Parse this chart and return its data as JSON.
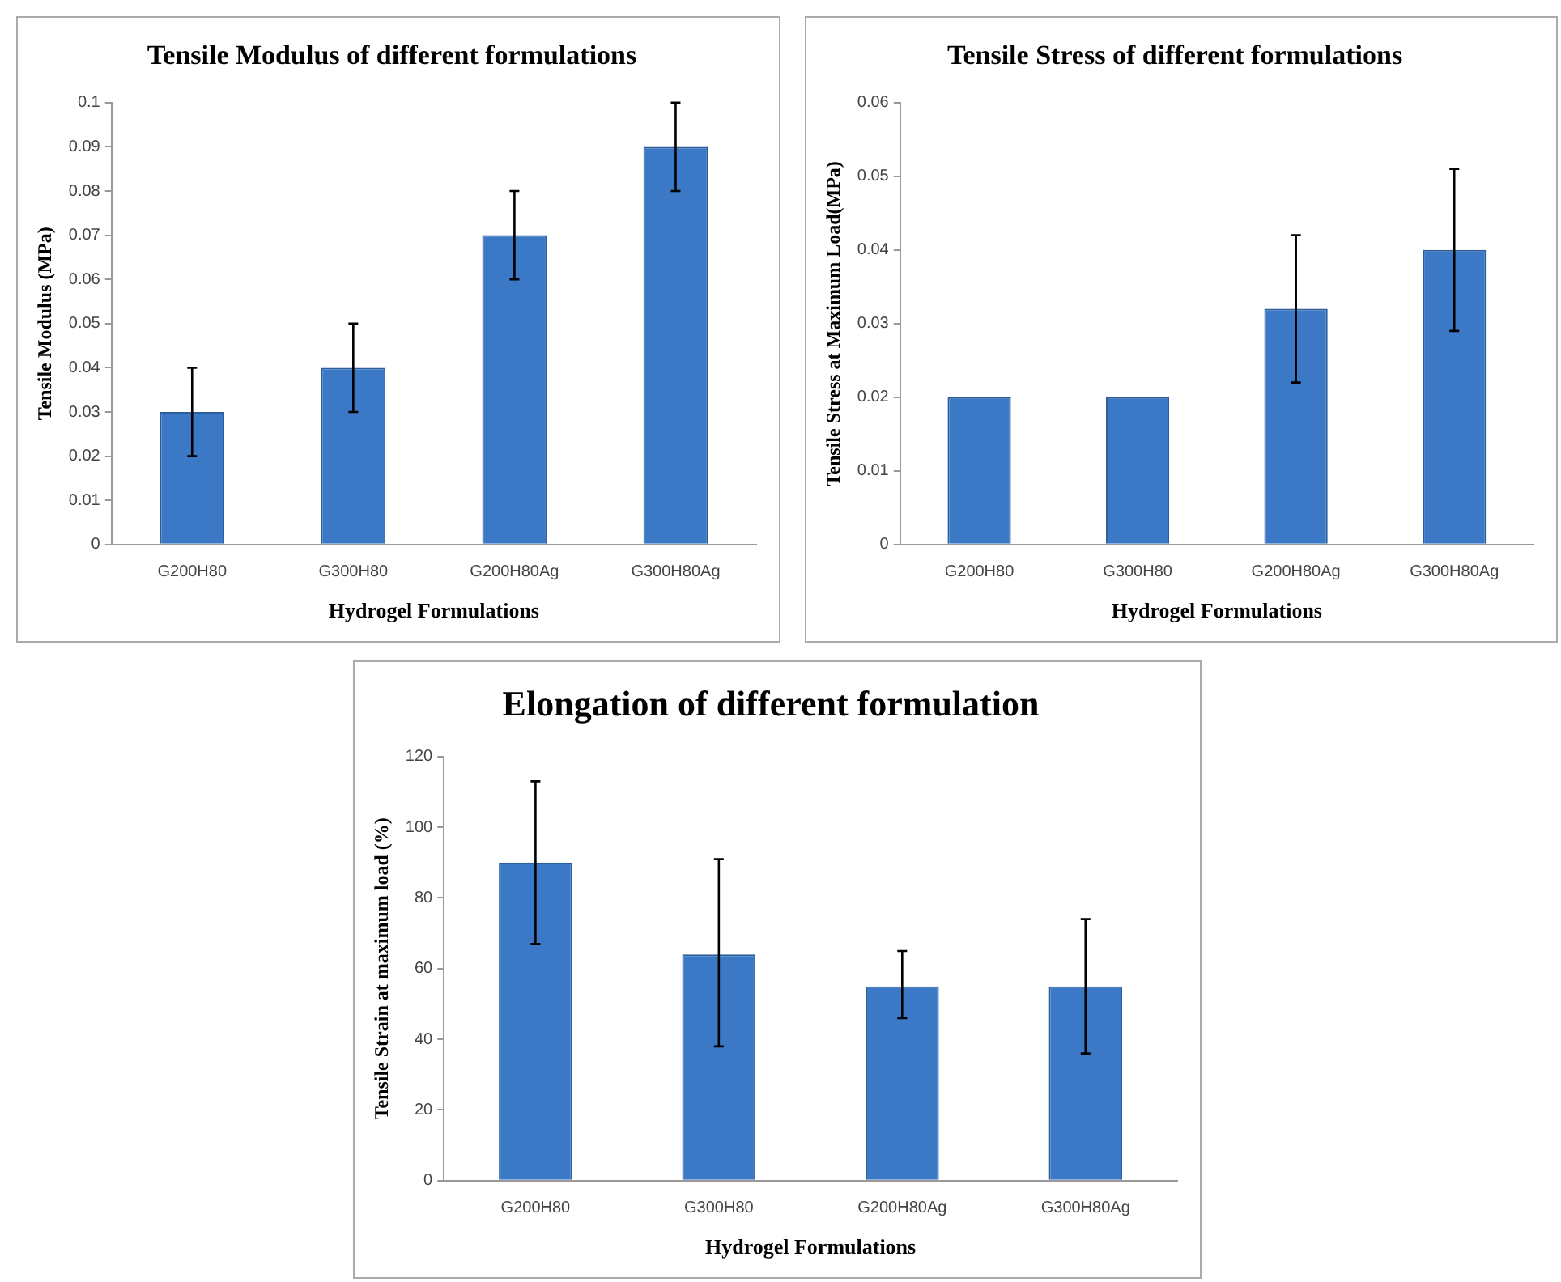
{
  "chart_data": [
    {
      "type": "bar",
      "title": "Tensile Modulus of different formulations",
      "xlabel": "Hydrogel Formulations",
      "ylabel": "Tensile Modulus (MPa)",
      "categories": [
        "G200H80",
        "G300H80",
        "G200H80Ag",
        "G300H80Ag"
      ],
      "values": [
        0.03,
        0.04,
        0.07,
        0.09
      ],
      "errors": [
        0.01,
        0.01,
        0.01,
        0.01
      ],
      "color": "#3b78c6",
      "ylim": [
        0,
        0.1
      ],
      "yticks": [
        0,
        0.01,
        0.02,
        0.03,
        0.04,
        0.05,
        0.06,
        0.07,
        0.08,
        0.09,
        0.1
      ],
      "grid": false
    },
    {
      "type": "bar",
      "title": "Tensile Stress of different formulations",
      "xlabel": "Hydrogel Formulations",
      "ylabel": "Tensile Stress at Maximum Load(MPa)",
      "categories": [
        "G200H80",
        "G300H80",
        "G200H80Ag",
        "G300H80Ag"
      ],
      "values": [
        0.02,
        0.02,
        0.032,
        0.04
      ],
      "errors": [
        null,
        null,
        0.01,
        [
          0.029,
          0.051
        ]
      ],
      "color": "#3b78c6",
      "ylim": [
        0,
        0.06
      ],
      "yticks": [
        0,
        0.01,
        0.02,
        0.03,
        0.04,
        0.05,
        0.06
      ],
      "grid": false
    },
    {
      "type": "bar",
      "title": "Elongation of different formulation",
      "xlabel": "Hydrogel Formulations",
      "ylabel": "Tensile Strain at maximum load (%)",
      "categories": [
        "G200H80",
        "G300H80",
        "G200H80Ag",
        "G300H80Ag"
      ],
      "values": [
        90,
        64,
        55,
        55
      ],
      "errors": [
        [
          67,
          113
        ],
        [
          38,
          91
        ],
        [
          46,
          65
        ],
        [
          36,
          74
        ]
      ],
      "color": "#3b78c6",
      "ylim": [
        0,
        120
      ],
      "yticks": [
        0,
        20,
        40,
        60,
        80,
        100,
        120
      ],
      "grid": false
    }
  ]
}
